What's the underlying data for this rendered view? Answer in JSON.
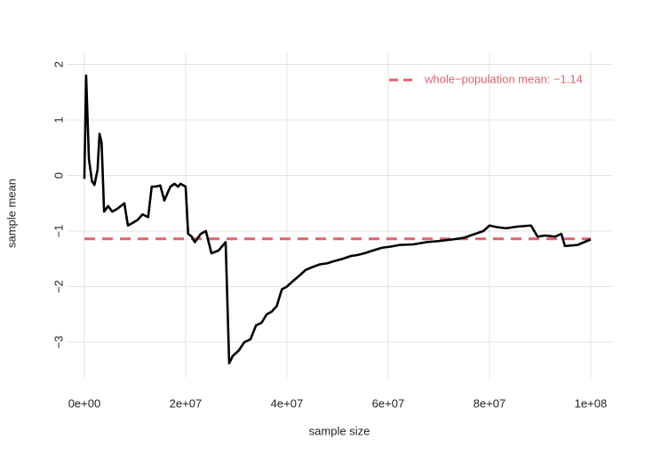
{
  "chart_data": {
    "type": "line",
    "x_label": "sample size",
    "y_label": "sample mean",
    "x": [
      0,
      350000,
      900000,
      1500000,
      2000000,
      2600000,
      3000000,
      3400000,
      3900000,
      4700000,
      5500000,
      6500000,
      7900000,
      8600000,
      9600000,
      10500000,
      11500000,
      12600000,
      13300000,
      14000000,
      15000000,
      15800000,
      16500000,
      17000000,
      17800000,
      18500000,
      19000000,
      20000000,
      20500000,
      21200000,
      21800000,
      23000000,
      24000000,
      25100000,
      26500000,
      27900000,
      28600000,
      29300000,
      30500000,
      31600000,
      32800000,
      33900000,
      35000000,
      36000000,
      37000000,
      38000000,
      39000000,
      40000000,
      41200000,
      42500000,
      43700000,
      45000000,
      46500000,
      48000000,
      49000000,
      51000000,
      52600000,
      54000000,
      55300000,
      57000000,
      58800000,
      60500000,
      62300000,
      65000000,
      67500000,
      70000000,
      72800000,
      75000000,
      77200000,
      78800000,
      80000000,
      81500000,
      83300000,
      85500000,
      88200000,
      89500000,
      91000000,
      93000000,
      94200000,
      94900000,
      97400000,
      100000000
    ],
    "series": [
      {
        "name": "sample mean",
        "color": "#000000",
        "values": [
          -0.06,
          1.8,
          0.3,
          -0.1,
          -0.17,
          0.1,
          0.75,
          0.6,
          -0.65,
          -0.55,
          -0.65,
          -0.6,
          -0.5,
          -0.9,
          -0.85,
          -0.8,
          -0.7,
          -0.75,
          -0.2,
          -0.2,
          -0.18,
          -0.45,
          -0.3,
          -0.2,
          -0.15,
          -0.2,
          -0.15,
          -0.2,
          -1.05,
          -1.1,
          -1.2,
          -1.05,
          -1.0,
          -1.4,
          -1.35,
          -1.2,
          -3.38,
          -3.25,
          -3.15,
          -3.0,
          -2.95,
          -2.7,
          -2.65,
          -2.5,
          -2.45,
          -2.35,
          -2.05,
          -2.0,
          -1.9,
          -1.8,
          -1.7,
          -1.65,
          -1.6,
          -1.58,
          -1.55,
          -1.5,
          -1.45,
          -1.43,
          -1.4,
          -1.35,
          -1.3,
          -1.28,
          -1.25,
          -1.24,
          -1.2,
          -1.18,
          -1.15,
          -1.12,
          -1.05,
          -1.0,
          -0.9,
          -0.93,
          -0.95,
          -0.92,
          -0.9,
          -1.1,
          -1.08,
          -1.1,
          -1.05,
          -1.27,
          -1.25,
          -1.15
        ]
      }
    ],
    "hline": {
      "value": -1.14,
      "color": "#e0636f",
      "label": "whole−population mean:  −1.14"
    },
    "xlim": [
      -3500000,
      104400000
    ],
    "xticks": [
      {
        "value": 0,
        "label": "0e+00"
      },
      {
        "value": 20000000,
        "label": "2e+07"
      },
      {
        "value": 40000000,
        "label": "4e+07"
      },
      {
        "value": 60000000,
        "label": "6e+07"
      },
      {
        "value": 80000000,
        "label": "8e+07"
      },
      {
        "value": 100000000,
        "label": "1e+08"
      }
    ],
    "ylim": [
      -3.64,
      2.2
    ],
    "yticks": [
      {
        "value": -3,
        "label": "−3"
      },
      {
        "value": -2,
        "label": "−2"
      },
      {
        "value": -1,
        "label": "−1"
      },
      0,
      1,
      2
    ],
    "grid": true,
    "legend": "top-right"
  }
}
